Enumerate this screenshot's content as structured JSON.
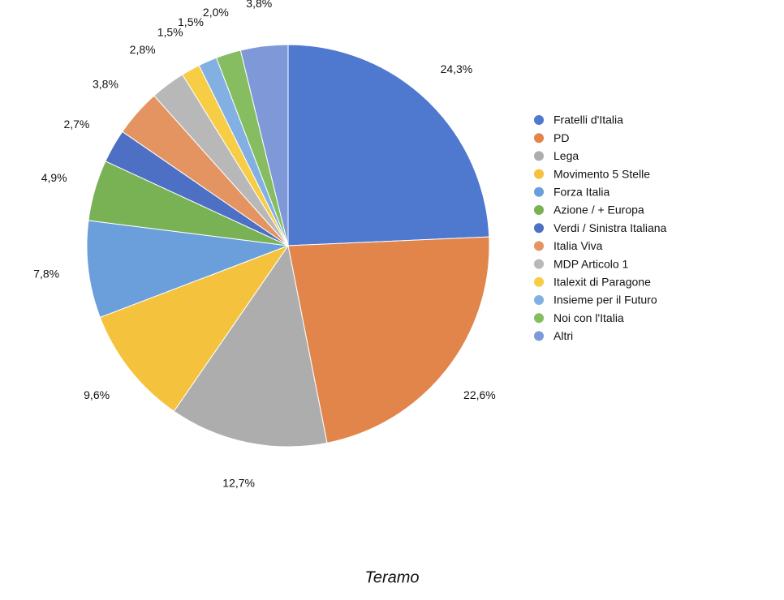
{
  "chart_data": {
    "type": "pie",
    "title": "Teramo",
    "categories": [
      "Fratelli d'Italia",
      "PD",
      "Lega",
      "Movimento 5 Stelle",
      "Forza Italia",
      "Azione / + Europa",
      "Verdi / Sinistra Italiana",
      "Italia Viva",
      "MDP Articolo 1",
      "Italexit di Paragone",
      "Insieme per il Futuro",
      "Noi con l'Italia",
      "Altri"
    ],
    "values": [
      24.3,
      22.6,
      12.7,
      9.6,
      7.8,
      4.9,
      2.7,
      3.8,
      2.8,
      1.5,
      1.5,
      2.0,
      3.8
    ],
    "value_labels": [
      "24,3%",
      "22,6%",
      "12,7%",
      "9,6%",
      "7,8%",
      "4,9%",
      "2,7%",
      "3,8%",
      "2,8%",
      "1,5%",
      "1,5%",
      "2,0%",
      "3,8%"
    ],
    "colors": [
      "#4f78cf",
      "#e2854a",
      "#adadad",
      "#f4c23c",
      "#6a9fdc",
      "#79b155",
      "#4d6fc4",
      "#e39460",
      "#b8b8b8",
      "#f7cd45",
      "#82b0e3",
      "#86bd60",
      "#7f98d8"
    ],
    "legend": "right"
  }
}
